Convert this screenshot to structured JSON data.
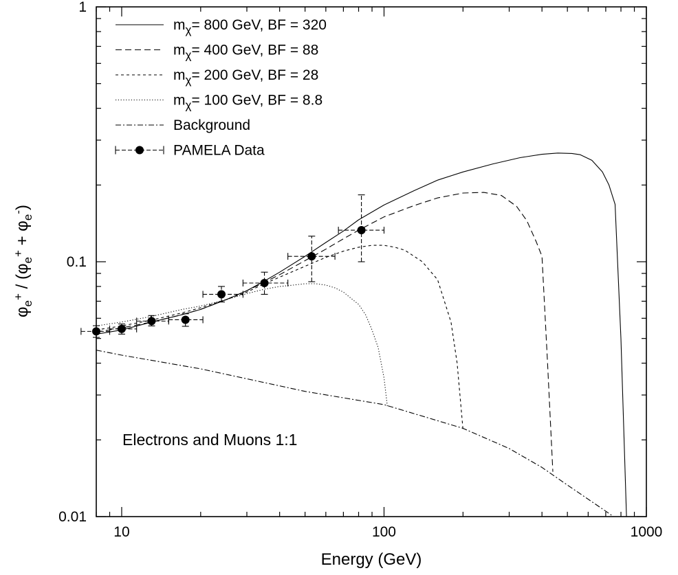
{
  "chart_data": {
    "type": "line",
    "title": "",
    "xlabel": "Energy (GeV)",
    "xscale": "log",
    "yscale": "log",
    "xlim": [
      8,
      1000
    ],
    "ylim": [
      0.01,
      1
    ],
    "x_ticks": [
      "10",
      "100",
      "1000"
    ],
    "y_ticks": [
      "0.01",
      "0.1",
      "1"
    ],
    "grid": false,
    "legend_position": "top-left",
    "annotation": "Electrons and Muons 1:1",
    "series": [
      {
        "name": "800 GeV, BF = 320",
        "style": "solid",
        "x": [
          8,
          10,
          13,
          17,
          20,
          25,
          30,
          35,
          40,
          50,
          60,
          70,
          80,
          100,
          130,
          160,
          200,
          260,
          330,
          400,
          460,
          520,
          560,
          620,
          680,
          720,
          760,
          800,
          840
        ],
        "y": [
          0.052,
          0.054,
          0.058,
          0.062,
          0.065,
          0.071,
          0.077,
          0.084,
          0.091,
          0.105,
          0.119,
          0.132,
          0.146,
          0.167,
          0.19,
          0.209,
          0.225,
          0.242,
          0.256,
          0.264,
          0.267,
          0.266,
          0.263,
          0.25,
          0.225,
          0.2,
          0.168,
          0.05,
          0.01
        ]
      },
      {
        "name": "400 GeV, BF = 88",
        "style": "dashed",
        "x": [
          8,
          10,
          13,
          17,
          20,
          25,
          30,
          35,
          40,
          50,
          60,
          70,
          80,
          100,
          130,
          160,
          200,
          240,
          280,
          320,
          350,
          380,
          400,
          420,
          440
        ],
        "y": [
          0.053,
          0.055,
          0.058,
          0.062,
          0.065,
          0.071,
          0.077,
          0.083,
          0.089,
          0.101,
          0.112,
          0.123,
          0.133,
          0.15,
          0.166,
          0.178,
          0.186,
          0.187,
          0.182,
          0.165,
          0.145,
          0.12,
          0.105,
          0.04,
          0.015
        ]
      },
      {
        "name": "200 GeV, BF = 28",
        "style": "short-dashed",
        "x": [
          8,
          10,
          13,
          17,
          20,
          25,
          30,
          35,
          40,
          50,
          60,
          70,
          80,
          90,
          100,
          110,
          120,
          140,
          160,
          180,
          190,
          200
        ],
        "y": [
          0.054,
          0.056,
          0.059,
          0.063,
          0.066,
          0.071,
          0.076,
          0.082,
          0.087,
          0.096,
          0.104,
          0.11,
          0.114,
          0.116,
          0.116,
          0.114,
          0.111,
          0.1,
          0.085,
          0.058,
          0.04,
          0.022
        ]
      },
      {
        "name": "100 GeV, BF = 8.8",
        "style": "dotted",
        "x": [
          8,
          10,
          13,
          17,
          20,
          25,
          30,
          35,
          40,
          45,
          50,
          55,
          60,
          65,
          70,
          80,
          85,
          90,
          95,
          100,
          103
        ],
        "y": [
          0.056,
          0.058,
          0.061,
          0.065,
          0.067,
          0.071,
          0.075,
          0.078,
          0.08,
          0.081,
          0.082,
          0.082,
          0.081,
          0.079,
          0.076,
          0.068,
          0.062,
          0.054,
          0.046,
          0.035,
          0.027
        ]
      },
      {
        "name": "Background",
        "style": "dash-dot",
        "x": [
          8,
          10,
          20,
          50,
          100,
          200,
          300,
          400,
          500,
          600,
          700,
          760
        ],
        "y": [
          0.045,
          0.043,
          0.038,
          0.031,
          0.0275,
          0.0222,
          0.0185,
          0.0156,
          0.0133,
          0.0117,
          0.0105,
          0.0099
        ]
      }
    ],
    "data_series": {
      "name": "PAMELA Data",
      "style": "points-with-errorbars",
      "points": [
        {
          "x": 8.0,
          "y": 0.0533,
          "xlo": 7.0,
          "xhi": 9.0,
          "ylo": 0.0505,
          "yhi": 0.0561
        },
        {
          "x": 10.0,
          "y": 0.0545,
          "xlo": 9.0,
          "xhi": 11.4,
          "ylo": 0.052,
          "yhi": 0.057
        },
        {
          "x": 13.0,
          "y": 0.0585,
          "xlo": 11.4,
          "xhi": 15.1,
          "ylo": 0.056,
          "yhi": 0.0615
        },
        {
          "x": 17.5,
          "y": 0.0592,
          "xlo": 15.1,
          "xhi": 20.4,
          "ylo": 0.0558,
          "yhi": 0.0625
        },
        {
          "x": 24.0,
          "y": 0.0745,
          "xlo": 20.4,
          "xhi": 29.0,
          "ylo": 0.0695,
          "yhi": 0.08
        },
        {
          "x": 35.0,
          "y": 0.0825,
          "xlo": 29.0,
          "xhi": 43.0,
          "ylo": 0.0745,
          "yhi": 0.091
        },
        {
          "x": 53.0,
          "y": 0.105,
          "xlo": 43.0,
          "xhi": 65.0,
          "ylo": 0.0835,
          "yhi": 0.126
        },
        {
          "x": 82.0,
          "y": 0.133,
          "xlo": 67.0,
          "xhi": 100.0,
          "ylo": 0.1,
          "yhi": 0.183
        }
      ]
    }
  },
  "axes": {
    "y_title_parts": [
      "φ",
      "e",
      "+",
      " / (φ",
      "e",
      "+",
      " + φ",
      "e",
      "-",
      ")"
    ],
    "x_title": "Energy (GeV)"
  },
  "legend": {
    "entries": [
      {
        "prefix": "m",
        "sub": "χ",
        "text": "= 800 GeV, BF = 320",
        "style": "solid"
      },
      {
        "prefix": "m",
        "sub": "χ",
        "text": "= 400 GeV, BF = 88",
        "style": "dashed"
      },
      {
        "prefix": "m",
        "sub": "χ",
        "text": "= 200 GeV, BF = 28",
        "style": "short-dashed"
      },
      {
        "prefix": "m",
        "sub": "χ",
        "text": "= 100 GeV, BF = 8.8",
        "style": "dotted"
      },
      {
        "prefix": "",
        "sub": "",
        "text": "Background",
        "style": "dash-dot"
      },
      {
        "prefix": "",
        "sub": "",
        "text": "PAMELA Data",
        "style": "points-with-errorbars"
      }
    ]
  },
  "colors": {
    "line": "#000000",
    "background": "#ffffff"
  }
}
